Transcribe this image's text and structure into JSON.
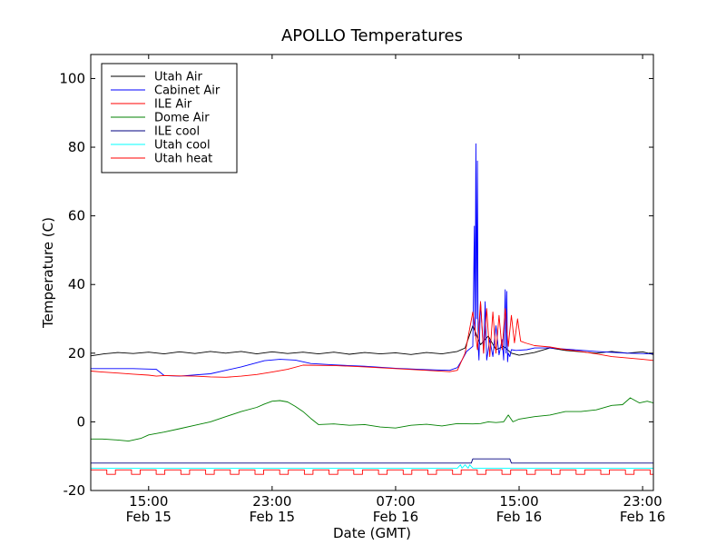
{
  "chart_data": {
    "type": "line",
    "title": "APOLLO Temperatures",
    "xlabel": "Date (GMT)",
    "ylabel": "Temperature (C)",
    "ylim": [
      -20,
      107
    ],
    "x_unit": "hours since 00:00 Feb 15 (GMT)",
    "xlim": [
      11.25,
      47.7
    ],
    "yticks": [
      {
        "value": -20,
        "label": "-20"
      },
      {
        "value": 0,
        "label": "0"
      },
      {
        "value": 20,
        "label": "20"
      },
      {
        "value": 40,
        "label": "40"
      },
      {
        "value": 60,
        "label": "60"
      },
      {
        "value": 80,
        "label": "80"
      },
      {
        "value": 100,
        "label": "100"
      }
    ],
    "xticks": [
      {
        "value": 15,
        "time": "15:00",
        "date": "Feb 15"
      },
      {
        "value": 23,
        "time": "23:00",
        "date": "Feb 15"
      },
      {
        "value": 31,
        "time": "07:00",
        "date": "Feb 16"
      },
      {
        "value": 39,
        "time": "15:00",
        "date": "Feb 16"
      },
      {
        "value": 47,
        "time": "23:00",
        "date": "Feb 16"
      }
    ],
    "legend_position": "top-left",
    "grid": false,
    "series": [
      {
        "name": "Utah Air",
        "color": "#000000",
        "x": [
          11.25,
          12.1,
          13.0,
          14.0,
          15.0,
          16.0,
          17.0,
          18.0,
          19.0,
          20.0,
          21.0,
          22.0,
          23.0,
          24.0,
          25.0,
          26.0,
          27.0,
          28.0,
          29.0,
          30.0,
          31.0,
          32.0,
          33.0,
          34.0,
          35.0,
          35.5,
          36.0,
          36.5,
          37.0,
          37.5,
          38.0,
          38.5,
          39.0,
          40.0,
          41.0,
          42.0,
          43.0,
          44.0,
          45.0,
          46.0,
          47.0,
          47.7
        ],
        "y": [
          19.2,
          19.8,
          20.2,
          19.9,
          20.3,
          19.8,
          20.4,
          19.9,
          20.5,
          20.0,
          20.5,
          19.8,
          20.4,
          19.9,
          20.3,
          19.8,
          20.3,
          19.7,
          20.2,
          19.8,
          20.1,
          19.6,
          20.2,
          19.8,
          20.5,
          21.5,
          28.0,
          22.5,
          25.0,
          21.0,
          22.0,
          20.0,
          19.4,
          20.2,
          21.5,
          20.8,
          20.4,
          20.0,
          20.5,
          20.0,
          20.4,
          19.6
        ]
      },
      {
        "name": "Cabinet Air",
        "color": "#0000ff",
        "x": [
          11.25,
          14.0,
          15.5,
          16.0,
          17.0,
          19.0,
          21.0,
          22.5,
          23.5,
          24.5,
          25.5,
          27.0,
          29.0,
          31.0,
          33.0,
          34.5,
          35.0,
          35.3,
          35.6,
          36.0,
          36.1,
          36.15,
          36.2,
          36.25,
          36.3,
          36.35,
          36.4,
          36.5,
          36.7,
          36.8,
          36.9,
          37.1,
          37.3,
          37.5,
          37.7,
          37.9,
          38.0,
          38.1,
          38.15,
          38.2,
          38.25,
          38.3,
          38.4,
          38.5,
          38.8,
          39.5,
          40.0,
          41.0,
          42.5,
          44.0,
          46.0,
          47.7
        ],
        "y": [
          15.5,
          15.5,
          15.3,
          13.5,
          13.3,
          14.0,
          16.0,
          17.8,
          18.2,
          18.0,
          17.0,
          16.6,
          16.2,
          15.6,
          15.2,
          15.0,
          15.8,
          18.0,
          20.5,
          22.0,
          57.0,
          25.0,
          81.0,
          30.0,
          76.0,
          22.0,
          18.0,
          35.0,
          20.0,
          35.0,
          18.0,
          24.0,
          19.0,
          28.0,
          19.5,
          24.0,
          18.0,
          38.5,
          20.0,
          38.0,
          17.5,
          20.0,
          19.0,
          21.0,
          20.8,
          21.0,
          21.5,
          21.5,
          21.0,
          20.5,
          20.0,
          19.8
        ]
      },
      {
        "name": "ILE Air",
        "color": "#ff0000",
        "x": [
          11.25,
          12.0,
          13.0,
          14.0,
          15.0,
          15.5,
          16.0,
          17.0,
          18.0,
          19.0,
          20.0,
          21.0,
          22.0,
          23.0,
          24.0,
          25.0,
          27.0,
          29.0,
          31.0,
          33.0,
          34.5,
          35.0,
          35.5,
          36.0,
          36.3,
          36.5,
          36.7,
          36.9,
          37.1,
          37.3,
          37.5,
          37.7,
          37.9,
          38.1,
          38.3,
          38.5,
          38.7,
          38.9,
          39.1,
          39.4,
          40.0,
          41.0,
          42.0,
          43.0,
          44.0,
          45.0,
          46.0,
          47.0,
          47.7
        ],
        "y": [
          14.8,
          14.5,
          14.2,
          13.9,
          13.6,
          13.3,
          13.5,
          13.4,
          13.3,
          13.1,
          13.0,
          13.3,
          13.8,
          14.5,
          15.3,
          16.5,
          16.4,
          16.0,
          15.5,
          15.0,
          14.6,
          15.0,
          20.0,
          32.0,
          21.0,
          35.0,
          20.0,
          33.0,
          19.0,
          32.0,
          20.0,
          31.0,
          21.0,
          33.0,
          22.0,
          31.0,
          23.0,
          30.0,
          23.5,
          23.0,
          22.2,
          21.8,
          21.0,
          20.5,
          19.8,
          19.0,
          18.6,
          18.2,
          17.9
        ]
      },
      {
        "name": "Dome Air",
        "color": "#008000",
        "x": [
          11.25,
          12.0,
          13.0,
          13.7,
          14.5,
          15.0,
          16.0,
          17.0,
          18.0,
          19.0,
          20.0,
          21.0,
          22.0,
          22.5,
          23.0,
          23.5,
          24.0,
          24.5,
          25.0,
          25.5,
          26.0,
          27.0,
          28.0,
          29.0,
          30.0,
          31.0,
          32.0,
          33.0,
          34.0,
          35.0,
          36.0,
          36.5,
          37.0,
          37.5,
          38.0,
          38.3,
          38.6,
          39.0,
          40.0,
          41.0,
          42.0,
          43.0,
          44.0,
          45.0,
          45.7,
          46.2,
          46.8,
          47.3,
          47.7
        ],
        "y": [
          -5.0,
          -5.0,
          -5.3,
          -5.6,
          -4.8,
          -3.8,
          -3.0,
          -2.0,
          -1.0,
          0.0,
          1.5,
          3.0,
          4.2,
          5.2,
          6.0,
          6.2,
          5.8,
          4.5,
          3.0,
          1.0,
          -0.8,
          -0.6,
          -1.0,
          -0.8,
          -1.5,
          -1.8,
          -1.0,
          -0.7,
          -1.2,
          -0.5,
          -0.6,
          -0.5,
          0.0,
          -0.2,
          0.0,
          2.0,
          0.0,
          0.8,
          1.5,
          2.0,
          3.0,
          3.0,
          3.5,
          4.8,
          5.0,
          7.0,
          5.5,
          6.0,
          5.5
        ]
      },
      {
        "name": "ILE cool",
        "color": "#000080",
        "x": [
          11.25,
          35.9,
          36.0,
          38.4,
          38.5,
          47.7
        ],
        "y": [
          -12.0,
          -12.0,
          -10.8,
          -10.8,
          -12.0,
          -12.0
        ]
      },
      {
        "name": "Utah cool",
        "color": "#00ffff",
        "x": [
          11.25,
          35.0,
          35.2,
          35.3,
          35.5,
          35.7,
          35.8,
          36.0,
          47.7
        ],
        "y": [
          -13.5,
          -13.5,
          -12.5,
          -13.5,
          -12.5,
          -13.5,
          -12.5,
          -13.5,
          -13.5
        ]
      },
      {
        "name": "Utah heat",
        "color": "#ff0000",
        "pattern": "square-wave",
        "high": -14.0,
        "low": -15.3,
        "period_hours": 1.6,
        "duty": 0.65
      }
    ]
  }
}
